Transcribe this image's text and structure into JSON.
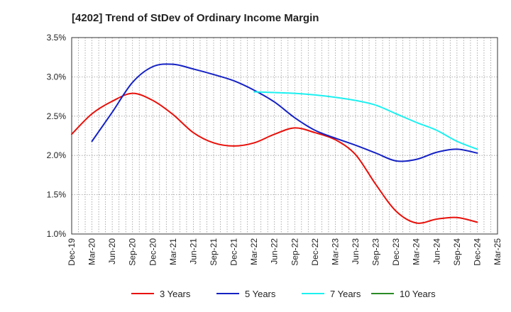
{
  "chart_data": {
    "type": "line",
    "title": "[4202]  Trend of StDev of Ordinary Income Margin",
    "xlabel": "",
    "ylabel": "",
    "x_tick_labels": [
      "Dec-19",
      "Mar-20",
      "Jun-20",
      "Sep-20",
      "Dec-20",
      "Mar-21",
      "Jun-21",
      "Sep-21",
      "Dec-21",
      "Mar-22",
      "Jun-22",
      "Sep-22",
      "Dec-22",
      "Mar-23",
      "Jun-23",
      "Sep-23",
      "Dec-23",
      "Mar-24",
      "Jun-24",
      "Sep-24",
      "Dec-24",
      "Mar-25"
    ],
    "y_tick_labels": [
      "1.0%",
      "1.5%",
      "2.0%",
      "2.5%",
      "3.0%",
      "3.5%"
    ],
    "ylim": [
      1.0,
      3.5
    ],
    "grid": true,
    "legend_position": "bottom",
    "series": [
      {
        "name": "3 Years",
        "color": "#e8100a",
        "x": [
          "Dec-19",
          "Mar-20",
          "Jun-20",
          "Sep-20",
          "Dec-20",
          "Mar-21",
          "Jun-21",
          "Sep-21",
          "Dec-21",
          "Mar-22",
          "Jun-22",
          "Sep-22",
          "Dec-22",
          "Mar-23",
          "Jun-23",
          "Sep-23",
          "Dec-23",
          "Mar-24",
          "Jun-24",
          "Sep-24",
          "Dec-24"
        ],
        "values": [
          2.27,
          2.53,
          2.69,
          2.79,
          2.7,
          2.52,
          2.29,
          2.16,
          2.12,
          2.16,
          2.27,
          2.35,
          2.29,
          2.2,
          2.01,
          1.63,
          1.29,
          1.14,
          1.19,
          1.21,
          1.15
        ]
      },
      {
        "name": "5 Years",
        "color": "#1522c4",
        "x": [
          "Mar-20",
          "Jun-20",
          "Sep-20",
          "Dec-20",
          "Mar-21",
          "Jun-21",
          "Sep-21",
          "Dec-21",
          "Mar-22",
          "Jun-22",
          "Sep-22",
          "Dec-22",
          "Mar-23",
          "Jun-23",
          "Sep-23",
          "Dec-23",
          "Mar-24",
          "Jun-24",
          "Sep-24",
          "Dec-24"
        ],
        "values": [
          2.18,
          2.55,
          2.93,
          3.13,
          3.16,
          3.1,
          3.03,
          2.95,
          2.83,
          2.68,
          2.48,
          2.32,
          2.22,
          2.13,
          2.03,
          1.93,
          1.95,
          2.04,
          2.08,
          2.03
        ]
      },
      {
        "name": "7 Years",
        "color": "#1cf0f0",
        "x": [
          "Mar-22",
          "Jun-22",
          "Sep-22",
          "Dec-22",
          "Mar-23",
          "Jun-23",
          "Sep-23",
          "Dec-23",
          "Mar-24",
          "Jun-24",
          "Sep-24",
          "Dec-24"
        ],
        "values": [
          2.81,
          2.8,
          2.79,
          2.77,
          2.74,
          2.7,
          2.64,
          2.53,
          2.42,
          2.32,
          2.18,
          2.08
        ]
      },
      {
        "name": "10 Years",
        "color": "#2a8a26",
        "x": [],
        "values": []
      }
    ]
  }
}
